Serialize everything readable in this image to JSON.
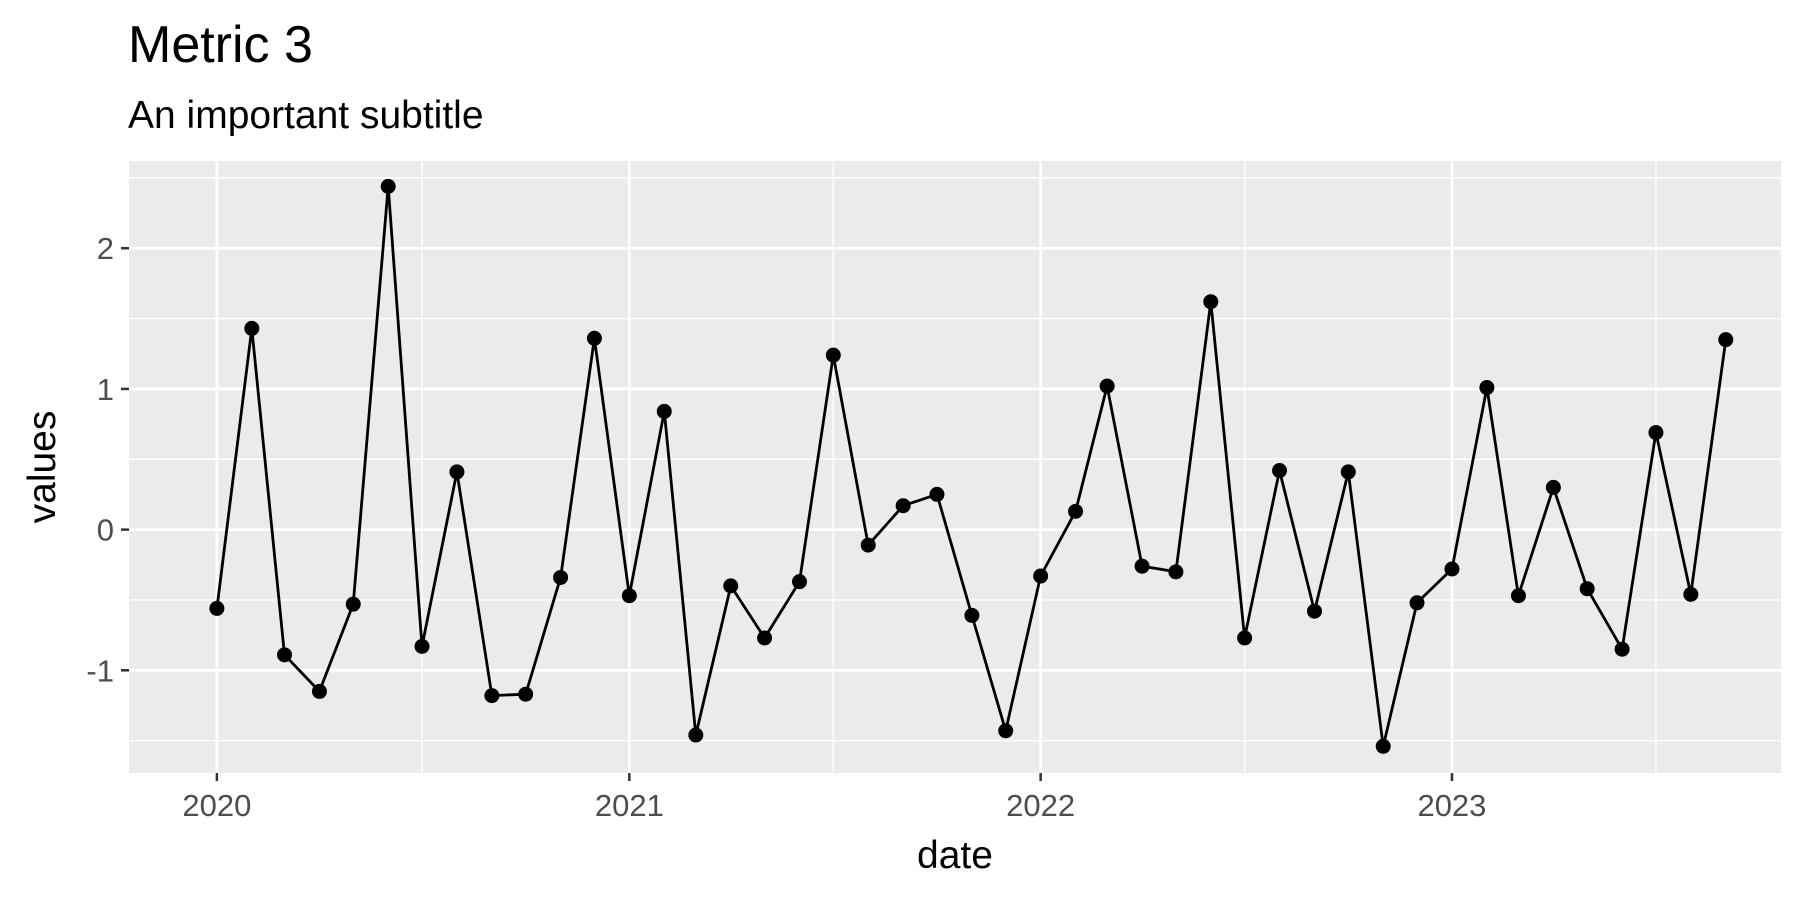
{
  "chart_data": {
    "type": "line",
    "title": "Metric 3",
    "subtitle": "An important subtitle",
    "xlabel": "date",
    "ylabel": "values",
    "x_ticks": [
      "2020",
      "2021",
      "2022",
      "2023"
    ],
    "y_ticks": [
      "-1",
      "0",
      "1",
      "2"
    ],
    "xlim": [
      "2019-10-15",
      "2023-10-20"
    ],
    "ylim": [
      -1.73,
      2.62
    ],
    "grid": true,
    "background": "#ebebeb",
    "line_color": "#000000",
    "point_color": "#000000",
    "x": [
      "2020-01-01",
      "2020-02-01",
      "2020-03-01",
      "2020-04-01",
      "2020-05-01",
      "2020-06-01",
      "2020-07-01",
      "2020-08-01",
      "2020-09-01",
      "2020-10-01",
      "2020-11-01",
      "2020-12-01",
      "2021-01-01",
      "2021-02-01",
      "2021-03-01",
      "2021-04-01",
      "2021-05-01",
      "2021-06-01",
      "2021-07-01",
      "2021-08-01",
      "2021-09-01",
      "2021-10-01",
      "2021-11-01",
      "2021-12-01",
      "2022-01-01",
      "2022-02-01",
      "2022-03-01",
      "2022-04-01",
      "2022-05-01",
      "2022-06-01",
      "2022-07-01",
      "2022-08-01",
      "2022-09-01",
      "2022-10-01",
      "2022-11-01",
      "2022-12-01",
      "2023-01-01",
      "2023-02-01",
      "2023-03-01",
      "2023-04-01",
      "2023-05-01",
      "2023-06-01",
      "2023-07-01",
      "2023-08-01",
      "2023-09-01"
    ],
    "values": [
      -0.56,
      1.43,
      -0.89,
      -1.15,
      -0.53,
      2.44,
      -0.83,
      0.41,
      -1.18,
      -1.17,
      -0.34,
      1.36,
      -0.47,
      0.84,
      -1.46,
      -0.4,
      -0.77,
      -0.37,
      1.24,
      -0.11,
      0.17,
      0.25,
      -0.61,
      -1.43,
      -0.33,
      0.13,
      1.02,
      -0.26,
      -0.3,
      1.62,
      -0.77,
      0.42,
      -0.58,
      0.41,
      -1.54,
      -0.52,
      -0.28,
      1.01,
      -0.47,
      0.3,
      -0.42,
      -0.85,
      0.69,
      -0.46,
      1.35
    ]
  }
}
